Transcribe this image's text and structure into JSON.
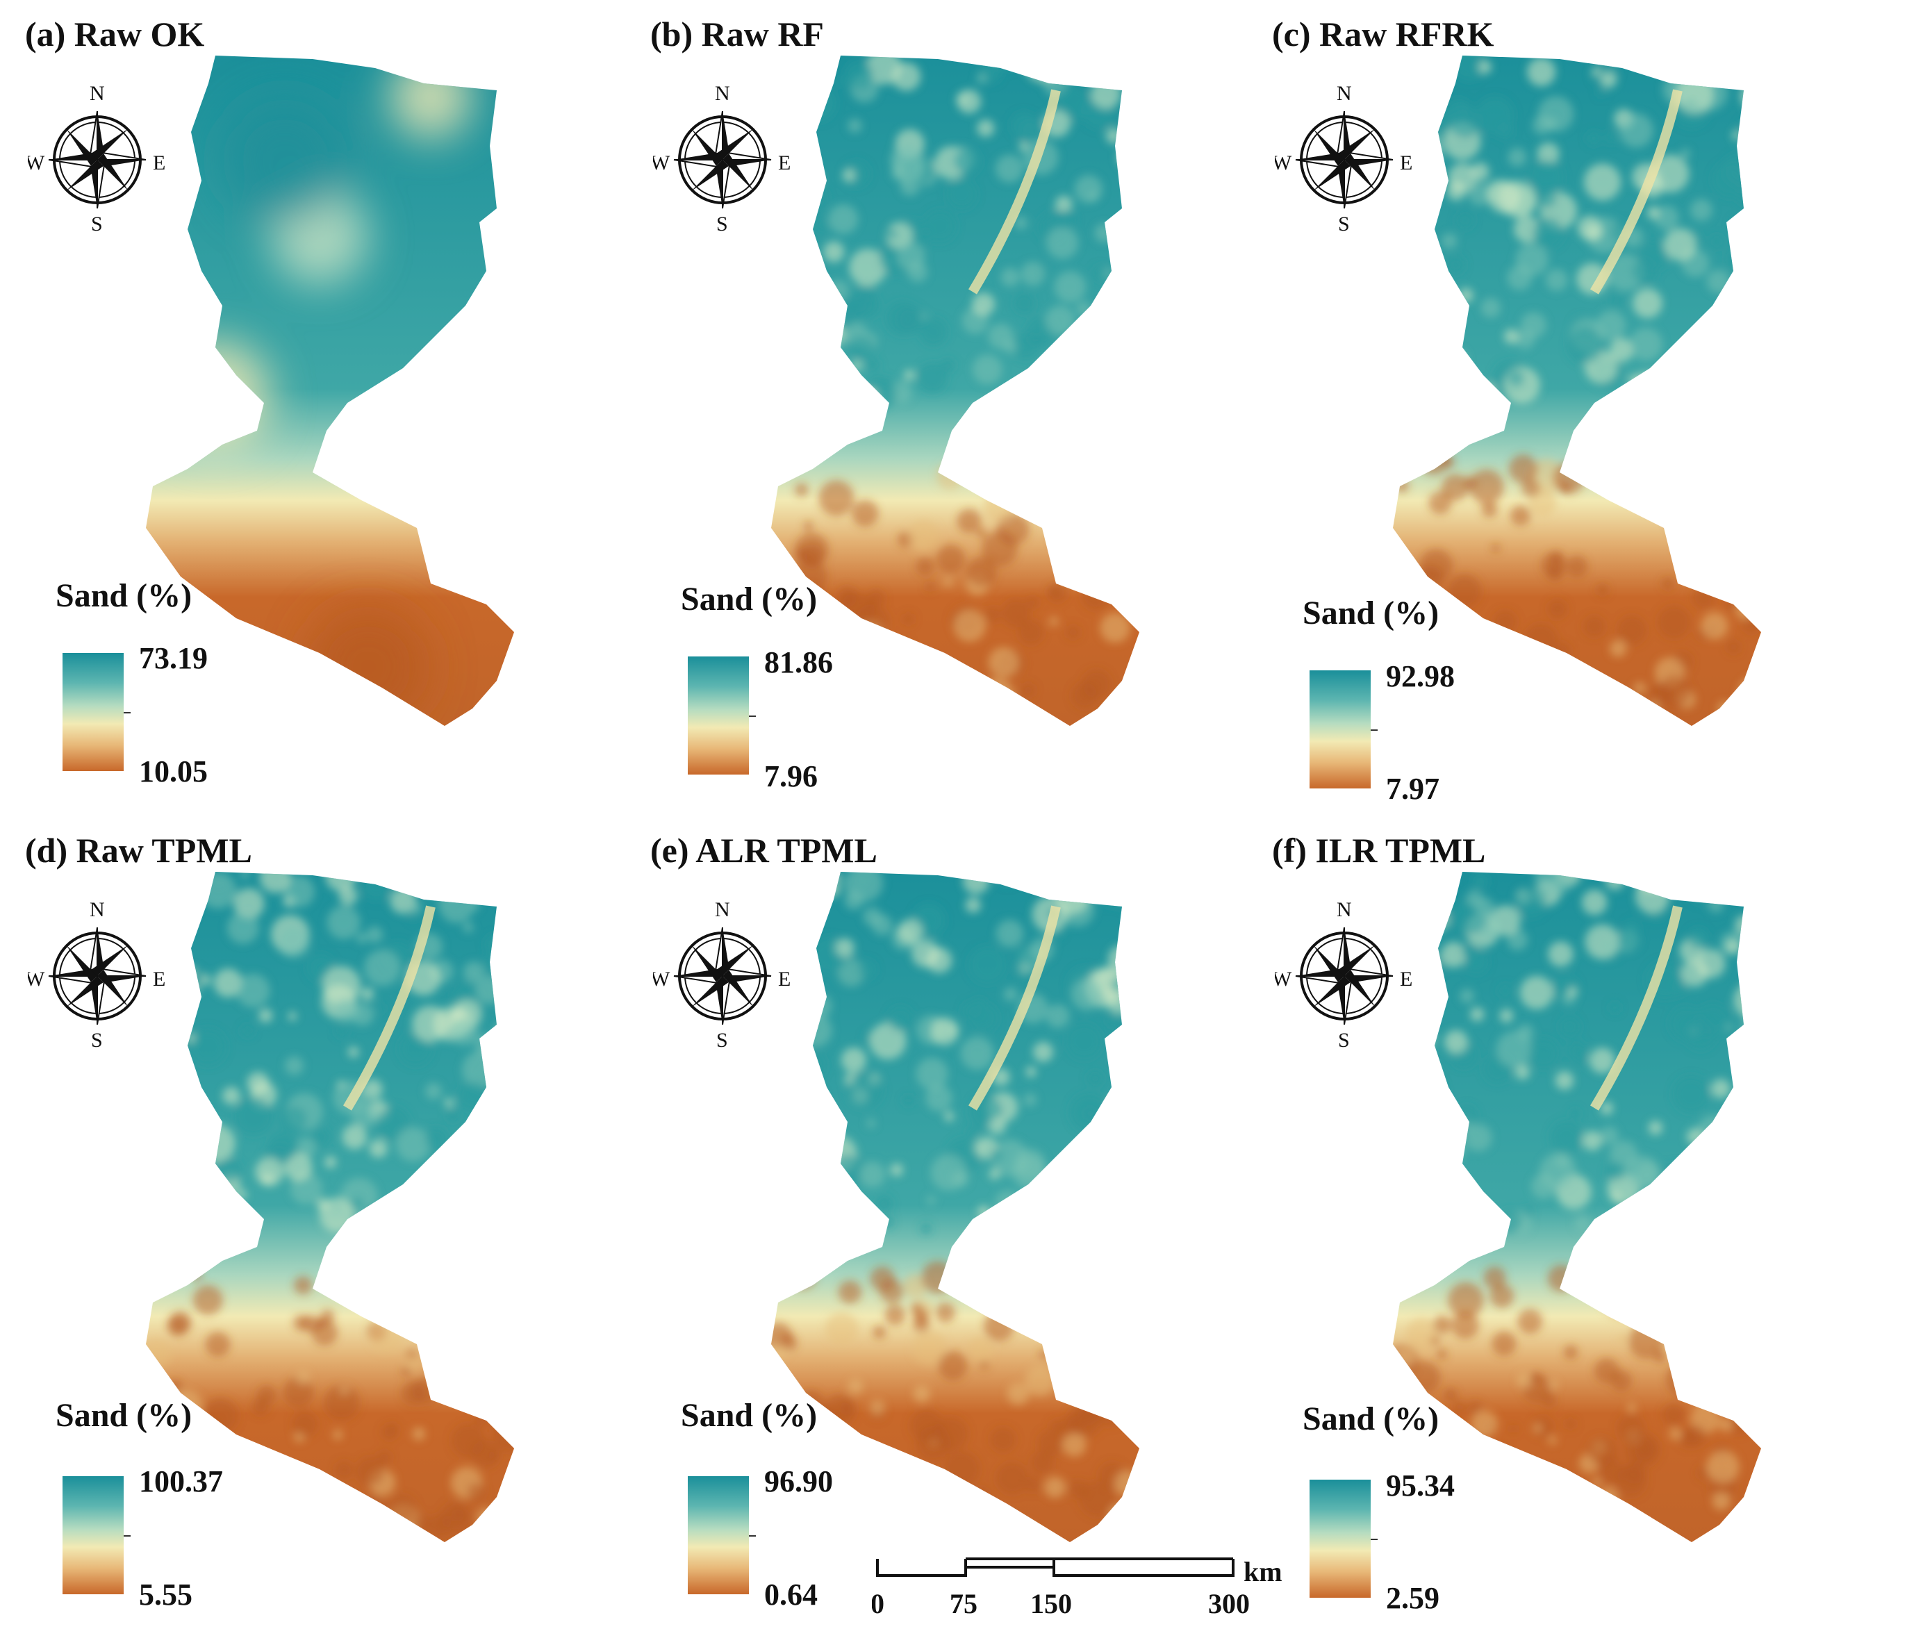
{
  "figure": {
    "panels": [
      {
        "title": "(a) Raw OK",
        "legend_title": "Sand (%)",
        "max": "73.19",
        "min": "10.05",
        "style": "smooth"
      },
      {
        "title": "(b) Raw RF",
        "legend_title": "Sand (%)",
        "max": "81.86",
        "min": "7.96",
        "style": "textured"
      },
      {
        "title": "(c) Raw RFRK",
        "legend_title": "Sand (%)",
        "max": "92.98",
        "min": "7.97",
        "style": "textured"
      },
      {
        "title": "(d) Raw TPML",
        "legend_title": "Sand (%)",
        "max": "100.37",
        "min": "5.55",
        "style": "textured"
      },
      {
        "title": "(e) ALR TPML",
        "legend_title": "Sand (%)",
        "max": "96.90",
        "min": "0.64",
        "style": "textured"
      },
      {
        "title": "(f) ILR TPML",
        "legend_title": "Sand (%)",
        "max": "95.34",
        "min": "2.59",
        "style": "textured"
      }
    ],
    "compass_labels": {
      "n": "N",
      "s": "S",
      "e": "E",
      "w": "W"
    },
    "scale_bar": {
      "ticks": [
        "0",
        "75",
        "150",
        "300"
      ],
      "unit": "km"
    },
    "colors": {
      "high": "#1a8f9a",
      "mid": "#f2eab4",
      "low": "#c8682a"
    }
  }
}
